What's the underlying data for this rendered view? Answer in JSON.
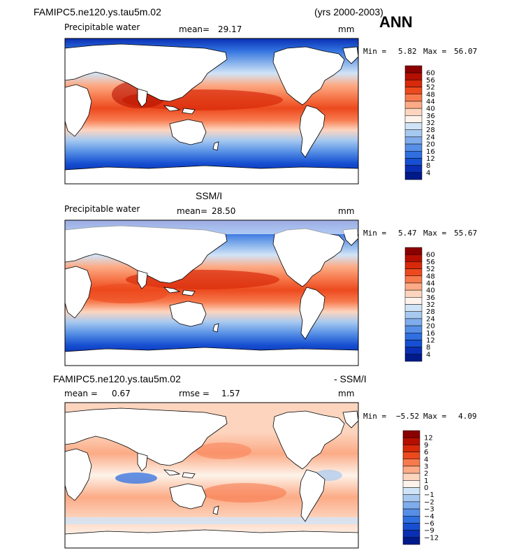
{
  "header": {
    "case_name": "FAMIPC5.ne120.ys.tau5m.02",
    "years": "(yrs 2000-2003)",
    "season": "ANN"
  },
  "panels": [
    {
      "id": "model",
      "variable": "Precipitable water",
      "mean_label": "mean=",
      "mean_value": "29.17",
      "units": "mm",
      "min_label": "Min =",
      "min_value": "5.82",
      "max_label": "Max =",
      "max_value": "56.07",
      "colorbar_labels": [
        "60",
        "56",
        "52",
        "48",
        "44",
        "40",
        "36",
        "32",
        "28",
        "24",
        "20",
        "16",
        "12",
        "8",
        "4"
      ]
    },
    {
      "id": "obs",
      "title": "SSM/I",
      "variable": "Precipitable water",
      "mean_label": "mean=",
      "mean_value": "28.50",
      "units": "mm",
      "min_label": "Min =",
      "min_value": "5.47",
      "max_label": "Max =",
      "max_value": "55.67",
      "colorbar_labels": [
        "60",
        "56",
        "52",
        "48",
        "44",
        "40",
        "36",
        "32",
        "28",
        "24",
        "20",
        "16",
        "12",
        "8",
        "4"
      ]
    },
    {
      "id": "diff",
      "title_left": "FAMIPC5.ne120.ys.tau5m.02",
      "title_right": "- SSM/I",
      "mean_label": "mean =",
      "mean_value": "0.67",
      "rmse_label": "rmse =",
      "rmse_value": "1.57",
      "units": "mm",
      "min_label": "Min =",
      "min_value": "−5.52",
      "max_label": "Max =",
      "max_value": "4.09",
      "colorbar_labels": [
        "12",
        "9",
        "6",
        "4",
        "3",
        "2",
        "1",
        "0",
        "−1",
        "−2",
        "−3",
        "−4",
        "−6",
        "−9",
        "−12"
      ]
    }
  ],
  "colors": {
    "scale_pw": [
      "#8b0000",
      "#b50f00",
      "#d8290a",
      "#ec4a1e",
      "#f77a4e",
      "#fcab86",
      "#fdd5bf",
      "#fdf3ea",
      "#d1e4f7",
      "#a7c9f0",
      "#7facea",
      "#568fe5",
      "#2f6fdf",
      "#164fd1",
      "#0a2fb4",
      "#001a8a"
    ],
    "scale_diff": [
      "#8b0000",
      "#b50f00",
      "#d8290a",
      "#ec4a1e",
      "#f77a4e",
      "#fcab86",
      "#fdd5bf",
      "#fdf3ea",
      "#d1e4f7",
      "#a7c9f0",
      "#7facea",
      "#568fe5",
      "#2f6fdf",
      "#164fd1",
      "#0a2fb4",
      "#001a8a"
    ]
  }
}
